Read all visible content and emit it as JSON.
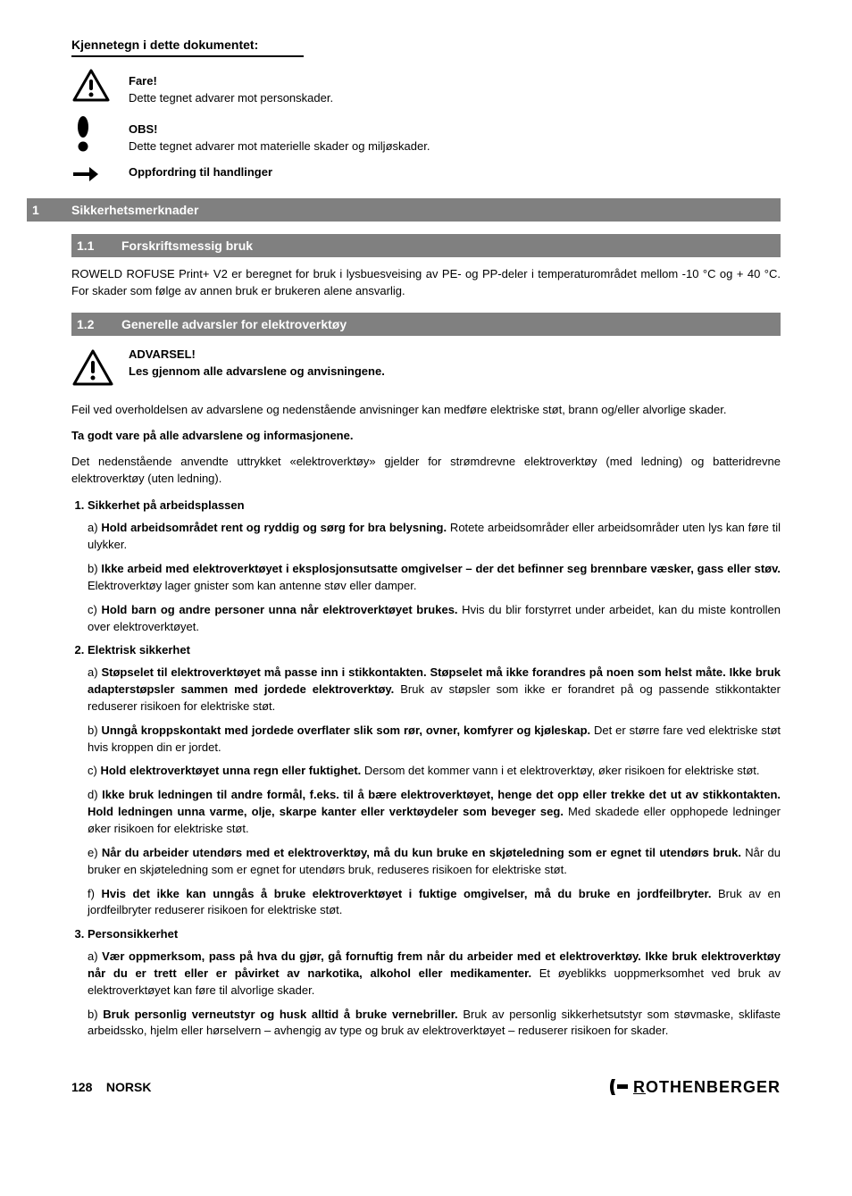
{
  "legend": {
    "heading": "Kjennetegn i dette dokumentet:",
    "items": [
      {
        "icon": "warning-triangle-icon",
        "title": "Fare!",
        "desc": "Dette tegnet advarer mot personskader."
      },
      {
        "icon": "exclamation-icon",
        "title": "OBS!",
        "desc": "Dette tegnet advarer mot materielle skader og miljøskader."
      },
      {
        "icon": "arrow-right-icon",
        "title": "Oppfordring til handlinger",
        "desc": ""
      }
    ]
  },
  "sections": [
    {
      "type": "h1",
      "num": "1",
      "title": "Sikkerhetsmerknader"
    },
    {
      "type": "h2",
      "num": "1.1",
      "title": "Forskriftsmessig bruk"
    }
  ],
  "body1": "ROWELD ROFUSE Print+ V2 er beregnet for bruk i lysbuesveising av PE- og PP-deler i temperaturområdet mellom -10 °C og + 40 °C. For skader som følge av annen bruk er brukeren alene ansvarlig.",
  "section2": {
    "num": "1.2",
    "title": "Generelle advarsler for elektroverktøy"
  },
  "warn_block": {
    "line1": "ADVARSEL!",
    "line2": "Les gjennom alle advarslene og anvisningene.",
    "after": "Feil ved overholdelsen av advarslene og nedenstående anvisninger kan medføre elektriske støt, brann og/eller alvorlige skader."
  },
  "keep": "Ta godt vare på alle advarslene og informasjonene.",
  "note": "Det nedenstående anvendte uttrykket «elektroverktøy» gjelder for strømdrevne elektroverktøy (med ledning) og batteridrevne elektroverktøy (uten ledning).",
  "list": [
    {
      "title": "Sikkerhet på arbeidsplassen",
      "items": [
        {
          "label": "a)",
          "bold": "Hold arbeidsområdet rent og ryddig og sørg for bra belysning.",
          "rest": " Rotete arbeidsområder eller arbeidsområder uten lys kan føre til ulykker."
        },
        {
          "label": "b)",
          "bold": "Ikke arbeid med elektroverktøyet i eksplosjonsutsatte omgivelser – der det befinner seg brennbare væsker, gass eller støv.",
          "rest": " Elektroverktøy lager gnister som kan antenne støv eller damper."
        },
        {
          "label": "c)",
          "bold": "Hold barn og andre personer unna når elektroverktøyet brukes.",
          "rest": " Hvis du blir forstyrret under arbeidet, kan du miste kontrollen over elektroverktøyet."
        }
      ]
    },
    {
      "title": "Elektrisk sikkerhet",
      "items": [
        {
          "label": "a)",
          "bold": "Støpselet til elektroverktøyet må passe inn i stikkontakten. Støpselet må ikke forandres på noen som helst måte. Ikke bruk adapterstøpsler sammen med jordede elektroverktøy.",
          "rest": " Bruk av støpsler som ikke er forandret på og passende stikkontakter reduserer risikoen for elektriske støt."
        },
        {
          "label": "b)",
          "bold": "Unngå kroppskontakt med jordede overflater slik som rør, ovner, komfyrer og kjøleskap.",
          "rest": " Det er større fare ved elektriske støt hvis kroppen din er jordet."
        },
        {
          "label": "c)",
          "bold": "Hold elektroverktøyet unna regn eller fuktighet.",
          "rest": " Dersom det kommer vann i et elektroverktøy, øker risikoen for elektriske støt."
        },
        {
          "label": "d)",
          "bold": "Ikke bruk ledningen til andre formål, f.eks. til å bære elektroverktøyet, henge det opp eller trekke det ut av stikkontakten. Hold ledningen unna varme, olje, skarpe kanter eller verktøydeler som beveger seg.",
          "rest": " Med skadede eller opphopede ledninger øker risikoen for elektriske støt."
        },
        {
          "label": "e)",
          "bold": "Når du arbeider utendørs med et elektroverktøy, må du kun bruke en skjøteledning som er egnet til utendørs bruk.",
          "rest": " Når du bruker en skjøteledning som er egnet for utendørs bruk, reduseres risikoen for elektriske støt."
        },
        {
          "label": "f)",
          "bold": "Hvis det ikke kan unngås å bruke elektroverktøyet i fuktige omgivelser, må du bruke en jordfeilbryter.",
          "rest": " Bruk av en jordfeilbryter reduserer risikoen for elektriske støt."
        }
      ]
    },
    {
      "title": "Personsikkerhet",
      "items": [
        {
          "label": "a)",
          "bold": "Vær oppmerksom, pass på hva du gjør, gå fornuftig frem når du arbeider med et elektroverktøy. Ikke bruk elektroverktøy når du er trett eller er påvirket av narkotika, alkohol eller medikamenter.",
          "rest": " Et øyeblikks uoppmerksomhet ved bruk av elektroverktøyet kan føre til alvorlige skader."
        },
        {
          "label": "b)",
          "bold": "Bruk personlig verneutstyr og husk alltid å bruke vernebriller.",
          "rest": " Bruk av personlig sikkerhetsutstyr som støvmaske, sklifaste arbeidssko, hjelm eller hørselvern – avhengig av type og bruk av elektroverktøyet – reduserer risikoen for skader."
        }
      ]
    }
  ],
  "footer": {
    "page": "128",
    "lang": "NORSK",
    "brand": "ROTHENBERGER"
  },
  "colors": {
    "bar_bg": "#808080",
    "bar_text": "#ffffff",
    "text": "#000000",
    "page_bg": "#ffffff"
  }
}
